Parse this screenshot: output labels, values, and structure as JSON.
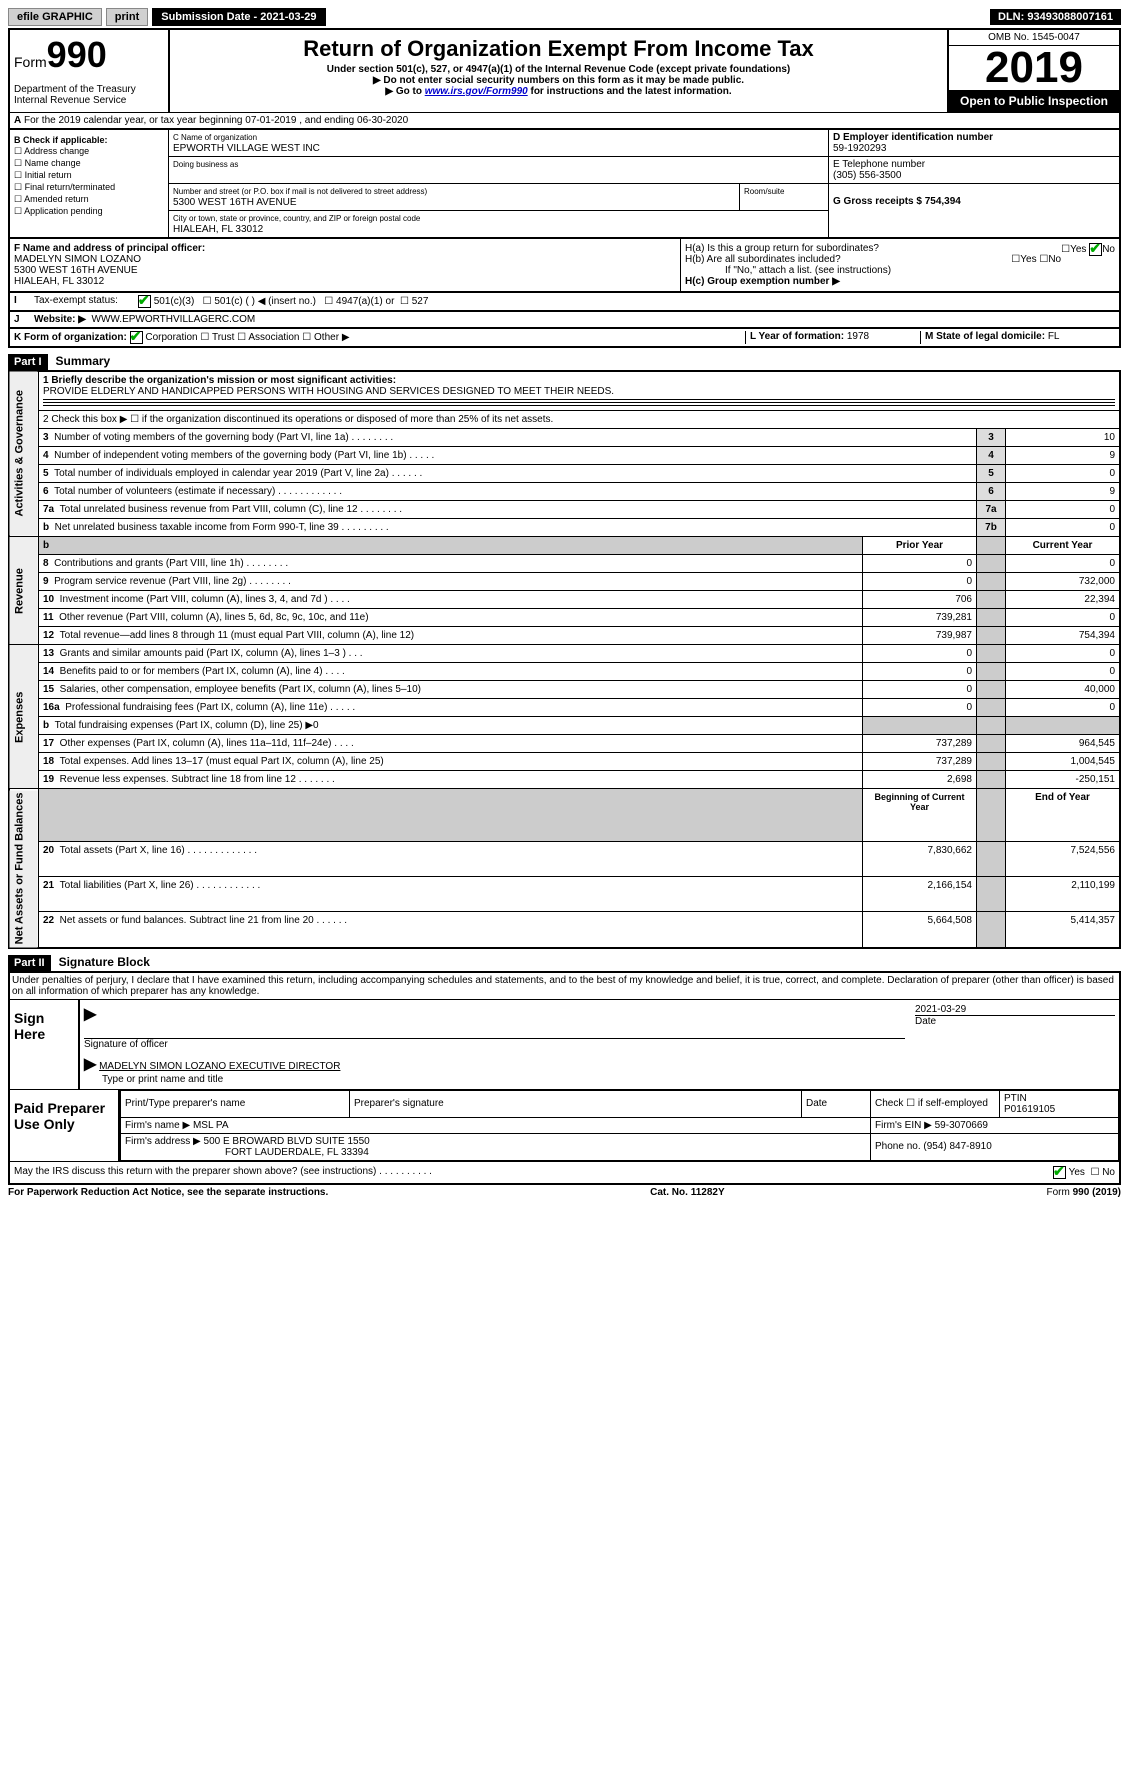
{
  "topbar": {
    "efile": "efile GRAPHIC",
    "print": "print",
    "submission": "Submission Date - 2021-03-29",
    "dln": "DLN: 93493088007161"
  },
  "header": {
    "form_word": "Form",
    "form_num": "990",
    "dept": "Department of the Treasury\nInternal Revenue Service",
    "title": "Return of Organization Exempt From Income Tax",
    "subtitle": "Under section 501(c), 527, or 4947(a)(1) of the Internal Revenue Code (except private foundations)",
    "note1": "▶ Do not enter social security numbers on this form as it may be made public.",
    "note2_pre": "▶ Go to ",
    "note2_link": "www.irs.gov/Form990",
    "note2_post": " for instructions and the latest information.",
    "omb": "OMB No. 1545-0047",
    "year": "2019",
    "inspect": "Open to Public Inspection"
  },
  "line_a": "For the 2019 calendar year, or tax year beginning 07-01-2019   , and ending 06-30-2020",
  "box_b": {
    "header": "B Check if applicable:",
    "address": "☐ Address change",
    "name": "☐ Name change",
    "initial": "☐ Initial return",
    "final": "☐ Final return/terminated",
    "amended": "☐ Amended return",
    "application": "☐ Application pending"
  },
  "box_c": {
    "lbl_name": "C Name of organization",
    "org_name": "EPWORTH VILLAGE WEST INC",
    "lbl_dba": "Doing business as",
    "lbl_street": "Number and street (or P.O. box if mail is not delivered to street address)",
    "lbl_room": "Room/suite",
    "street": "5300 WEST 16TH AVENUE",
    "lbl_city": "City or town, state or province, country, and ZIP or foreign postal code",
    "city": "HIALEAH, FL  33012"
  },
  "box_d": {
    "lbl": "D Employer identification number",
    "val": "59-1920293"
  },
  "box_e": {
    "lbl": "E Telephone number",
    "val": "(305) 556-3500"
  },
  "box_g": "G Gross receipts $ 754,394",
  "box_f": {
    "lbl": "F  Name and address of principal officer:",
    "name": "MADELYN SIMON LOZANO",
    "street": "5300 WEST 16TH AVENUE",
    "city": "HIALEAH, FL  33012"
  },
  "box_h": {
    "ha": "H(a)  Is this a group return for subordinates?",
    "ha_yes": "Yes",
    "ha_no": "No",
    "hb": "H(b)  Are all subordinates included?",
    "hb_yes": "Yes",
    "hb_no": "No",
    "note": "If \"No,\" attach a list. (see instructions)",
    "hc": "H(c)  Group exemption number ▶"
  },
  "line_i": {
    "lbl": "Tax-exempt status:",
    "c3": "501(c)(3)",
    "c": "501(c) (   ) ◀ (insert no.)",
    "a1": "4947(a)(1) or",
    "527": "527"
  },
  "line_j": {
    "lbl": "Website: ▶",
    "val": "WWW.EPWORTHVILLAGERC.COM"
  },
  "line_k": {
    "lbl": "K Form of organization:",
    "corp": "Corporation",
    "trust": "Trust",
    "assoc": "Association",
    "other": "Other ▶",
    "year_lbl": "L Year of formation: ",
    "year_val": "1978",
    "state_lbl": "M State of legal domicile: ",
    "state_val": "FL"
  },
  "part1": {
    "header": "Part I",
    "title": "Summary",
    "vtabs": [
      "Activities & Governance",
      "Revenue",
      "Expenses",
      "Net Assets or Fund Balances"
    ],
    "q1_lbl": "1   Briefly describe the organization's mission or most significant activities:",
    "q1_val": "PROVIDE ELDERLY AND HANDICAPPED PERSONS WITH HOUSING AND SERVICES DESIGNED TO MEET THEIR NEEDS.",
    "q2": "2    Check this box ▶ ☐  if the organization discontinued its operations or disposed of more than 25% of its net assets.",
    "gov_rows": [
      {
        "n": "3",
        "t": "Number of voting members of the governing body (Part VI, line 1a)   .   .   .   .   .   .   .   .",
        "k": "3",
        "v": "10"
      },
      {
        "n": "4",
        "t": "Number of independent voting members of the governing body (Part VI, line 1b)   .   .   .   .   .",
        "k": "4",
        "v": "9"
      },
      {
        "n": "5",
        "t": "Total number of individuals employed in calendar year 2019 (Part V, line 2a)   .   .   .   .   .   .",
        "k": "5",
        "v": "0"
      },
      {
        "n": "6",
        "t": "Total number of volunteers (estimate if necessary)   .   .   .   .   .   .   .   .   .   .   .   .",
        "k": "6",
        "v": "9"
      },
      {
        "n": "7a",
        "t": "Total unrelated business revenue from Part VIII, column (C), line 12   .   .   .   .   .   .   .   .",
        "k": "7a",
        "v": "0"
      },
      {
        "n": "b",
        "t": "Net unrelated business taxable income from Form 990-T, line 39   .   .   .   .   .   .   .   .   .",
        "k": "7b",
        "v": "0"
      }
    ],
    "py_header": "Prior Year",
    "cy_header": "Current Year",
    "rev_rows": [
      {
        "n": "8",
        "t": "Contributions and grants (Part VIII, line 1h)   .   .   .   .   .   .   .   .",
        "py": "0",
        "cy": "0"
      },
      {
        "n": "9",
        "t": "Program service revenue (Part VIII, line 2g)   .   .   .   .   .   .   .   .",
        "py": "0",
        "cy": "732,000"
      },
      {
        "n": "10",
        "t": "Investment income (Part VIII, column (A), lines 3, 4, and 7d )   .   .   .   .",
        "py": "706",
        "cy": "22,394"
      },
      {
        "n": "11",
        "t": "Other revenue (Part VIII, column (A), lines 5, 6d, 8c, 9c, 10c, and 11e)",
        "py": "739,281",
        "cy": "0"
      },
      {
        "n": "12",
        "t": "Total revenue—add lines 8 through 11 (must equal Part VIII, column (A), line 12)",
        "py": "739,987",
        "cy": "754,394"
      }
    ],
    "exp_rows": [
      {
        "n": "13",
        "t": "Grants and similar amounts paid (Part IX, column (A), lines 1–3 )   .   .   .",
        "py": "0",
        "cy": "0"
      },
      {
        "n": "14",
        "t": "Benefits paid to or for members (Part IX, column (A), line 4)   .   .   .   .",
        "py": "0",
        "cy": "0"
      },
      {
        "n": "15",
        "t": "Salaries, other compensation, employee benefits (Part IX, column (A), lines 5–10)",
        "py": "0",
        "cy": "40,000"
      },
      {
        "n": "16a",
        "t": "Professional fundraising fees (Part IX, column (A), line 11e)   .   .   .   .   .",
        "py": "0",
        "cy": "0"
      },
      {
        "n": "b",
        "t": "Total fundraising expenses (Part IX, column (D), line 25) ▶0",
        "py": "",
        "cy": "",
        "gray": true
      },
      {
        "n": "17",
        "t": "Other expenses (Part IX, column (A), lines 11a–11d, 11f–24e)   .   .   .   .",
        "py": "737,289",
        "cy": "964,545"
      },
      {
        "n": "18",
        "t": "Total expenses. Add lines 13–17 (must equal Part IX, column (A), line 25)",
        "py": "737,289",
        "cy": "1,004,545"
      },
      {
        "n": "19",
        "t": "Revenue less expenses. Subtract line 18 from line 12   .   .   .   .   .   .   .",
        "py": "2,698",
        "cy": "-250,151"
      }
    ],
    "net_header_py": "Beginning of Current Year",
    "net_header_cy": "End of Year",
    "net_rows": [
      {
        "n": "20",
        "t": "Total assets (Part X, line 16)   .   .   .   .   .   .   .   .   .   .   .   .   .",
        "py": "7,830,662",
        "cy": "7,524,556"
      },
      {
        "n": "21",
        "t": "Total liabilities (Part X, line 26)   .   .   .   .   .   .   .   .   .   .   .   .",
        "py": "2,166,154",
        "cy": "2,110,199"
      },
      {
        "n": "22",
        "t": "Net assets or fund balances. Subtract line 21 from line 20   .   .   .   .   .   .",
        "py": "5,664,508",
        "cy": "5,414,357"
      }
    ]
  },
  "part2": {
    "header": "Part II",
    "title": "Signature Block",
    "perjury": "Under penalties of perjury, I declare that I have examined this return, including accompanying schedules and statements, and to the best of my knowledge and belief, it is true, correct, and complete. Declaration of preparer (other than officer) is based on all information of which preparer has any knowledge.",
    "sign_label": "Sign Here",
    "sig_officer": "Signature of officer",
    "date_val": "2021-03-29",
    "date_lbl": "Date",
    "officer_name": "MADELYN SIMON LOZANO  EXECUTIVE DIRECTOR",
    "type_name": "Type or print name and title",
    "paid_label": "Paid Preparer Use Only",
    "prep_name_lbl": "Print/Type preparer's name",
    "prep_sig_lbl": "Preparer's signature",
    "prep_date_lbl": "Date",
    "check_self": "Check ☐ if self-employed",
    "ptin_lbl": "PTIN",
    "ptin_val": "P01619105",
    "firm_name_lbl": "Firm's name    ▶ ",
    "firm_name": "MSL PA",
    "firm_ein_lbl": "Firm's EIN ▶ ",
    "firm_ein": "59-3070669",
    "firm_addr_lbl": "Firm's address ▶ ",
    "firm_addr1": "500 E BROWARD BLVD SUITE 1550",
    "firm_addr2": "FORT LAUDERDALE, FL  33394",
    "phone_lbl": "Phone no. ",
    "phone_val": "(954) 847-8910",
    "discuss": "May the IRS discuss this return with the preparer shown above? (see instructions)   .   .   .   .   .   .   .   .   .   .",
    "discuss_yes": "Yes",
    "discuss_no": "No"
  },
  "footer": {
    "left": "For Paperwork Reduction Act Notice, see the separate instructions.",
    "mid": "Cat. No. 11282Y",
    "right": "Form 990 (2019)"
  }
}
